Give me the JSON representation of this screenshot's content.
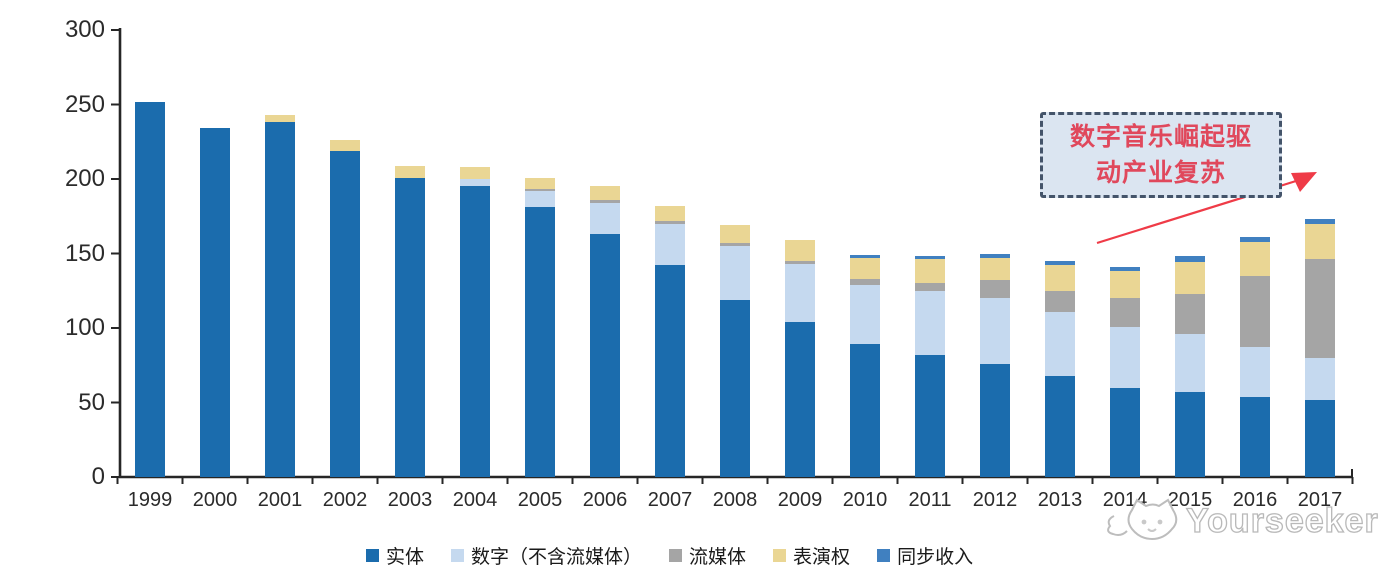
{
  "chart_data": {
    "type": "bar",
    "stacked": true,
    "title": "",
    "xlabel": "",
    "ylabel": "",
    "categories": [
      "1999",
      "2000",
      "2001",
      "2002",
      "2003",
      "2004",
      "2005",
      "2006",
      "2007",
      "2008",
      "2009",
      "2010",
      "2011",
      "2012",
      "2013",
      "2014",
      "2015",
      "2016",
      "2017"
    ],
    "series": [
      {
        "name": "实体",
        "color": "#1B6CAD",
        "values": [
          252,
          234,
          238,
          219,
          201,
          195,
          181,
          163,
          142,
          119,
          104,
          89,
          82,
          76,
          68,
          60,
          57,
          54,
          52
        ]
      },
      {
        "name": "数字（不含流媒体）",
        "color": "#C5D9EF",
        "values": [
          0,
          0,
          0,
          0,
          0,
          5,
          11,
          21,
          28,
          36,
          39,
          40,
          43,
          44,
          43,
          41,
          39,
          33,
          28
        ]
      },
      {
        "name": "流媒体",
        "color": "#A5A5A5",
        "values": [
          0,
          0,
          0,
          0,
          0,
          0,
          1,
          2,
          2,
          2,
          2,
          4,
          5,
          12,
          14,
          19,
          27,
          48,
          66
        ]
      },
      {
        "name": "表演权",
        "color": "#EAD694",
        "values": [
          0,
          0,
          5,
          7,
          8,
          8,
          8,
          9,
          10,
          12,
          14,
          14,
          16,
          15,
          17,
          18,
          21,
          23,
          24
        ]
      },
      {
        "name": "同步收入",
        "color": "#4080C0",
        "values": [
          0,
          0,
          0,
          0,
          0,
          0,
          0,
          0,
          0,
          0,
          0,
          2,
          2,
          3,
          3,
          3,
          4,
          3,
          3
        ]
      }
    ],
    "ylim": [
      0,
      300
    ],
    "yticks": [
      0,
      50,
      100,
      150,
      200,
      250,
      300
    ],
    "grid": false,
    "legend_position": "bottom"
  },
  "annotation": {
    "line1": "数字音乐崛起驱",
    "line2": "动产业复苏"
  },
  "watermark": {
    "text": "Yourseeker"
  },
  "colors": {
    "annotation_text": "#E0485C",
    "annotation_border": "#44546A",
    "annotation_fill": "#DBE5F1",
    "arrow": "#EF3B47",
    "axis": "#262626",
    "watermark_outline": "#B9B9B9"
  }
}
